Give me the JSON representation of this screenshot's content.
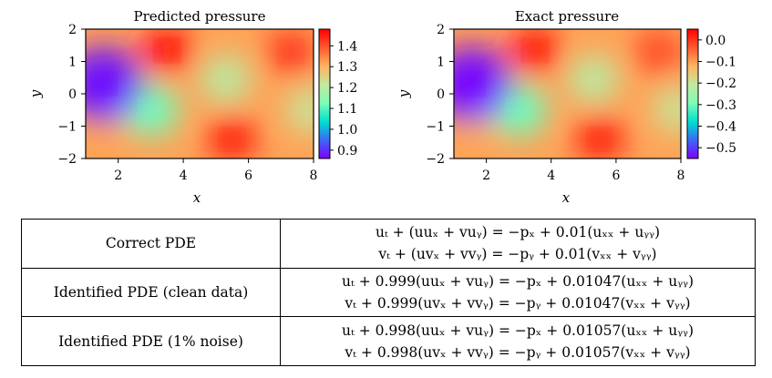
{
  "chart_data": [
    {
      "type": "heatmap",
      "title": "Predicted pressure",
      "xlabel": "x",
      "ylabel": "y",
      "xlim": [
        1,
        8
      ],
      "ylim": [
        -2,
        2
      ],
      "x_ticks": [
        "2",
        "4",
        "6",
        "8"
      ],
      "y_ticks": [
        "2",
        "1",
        "0",
        "−1",
        "−2"
      ],
      "colorbar": {
        "range": [
          0.86,
          1.48
        ],
        "ticks": [
          "1.4",
          "1.3",
          "1.2",
          "1.1",
          "1.0",
          "0.9"
        ],
        "colormap": "rainbow"
      },
      "field": [
        {
          "x": 1.55,
          "y": 0.3,
          "value": 0.88
        },
        {
          "x": 3.5,
          "y": 1.35,
          "value": 1.45
        },
        {
          "x": 3.0,
          "y": -0.5,
          "value": 1.12
        },
        {
          "x": 1.9,
          "y": -0.75,
          "value": 1.32
        },
        {
          "x": 5.3,
          "y": 0.45,
          "value": 1.2
        },
        {
          "x": 7.9,
          "y": -0.5,
          "value": 1.22
        },
        {
          "x": 5.5,
          "y": -1.4,
          "value": 1.44
        },
        {
          "x": 7.3,
          "y": 1.3,
          "value": 1.42
        }
      ]
    },
    {
      "type": "heatmap",
      "title": "Exact pressure",
      "xlabel": "x",
      "ylabel": "y",
      "xlim": [
        1,
        8
      ],
      "ylim": [
        -2,
        2
      ],
      "x_ticks": [
        "2",
        "4",
        "6",
        "8"
      ],
      "y_ticks": [
        "2",
        "1",
        "0",
        "−1",
        "−2"
      ],
      "colorbar": {
        "range": [
          -0.55,
          0.05
        ],
        "ticks": [
          "0.0",
          "−0.1",
          "−0.2",
          "−0.3",
          "−0.4",
          "−0.5"
        ],
        "colormap": "rainbow"
      },
      "field": [
        {
          "x": 1.55,
          "y": 0.3,
          "value": -0.54
        },
        {
          "x": 3.5,
          "y": 1.35,
          "value": 0.02
        },
        {
          "x": 3.0,
          "y": -0.5,
          "value": -0.3
        },
        {
          "x": 1.9,
          "y": -0.75,
          "value": -0.12
        },
        {
          "x": 5.3,
          "y": 0.45,
          "value": -0.22
        },
        {
          "x": 7.9,
          "y": -0.5,
          "value": -0.2
        },
        {
          "x": 5.5,
          "y": -1.4,
          "value": 0.01
        },
        {
          "x": 7.3,
          "y": 1.3,
          "value": -0.02
        }
      ]
    }
  ],
  "colors": {
    "rainbow_stops": [
      "#8000ff",
      "#3b69f6",
      "#00e0ce",
      "#7ffcb6",
      "#c3e89e",
      "#ffb360",
      "#ff5a2f",
      "#ff0000"
    ]
  },
  "table": {
    "rows": [
      {
        "label": "Correct PDE",
        "eq1": "uₜ + (uuₓ + vuᵧ) = −pₓ + 0.01(uₓₓ + uᵧᵧ)",
        "eq2": "vₜ + (uvₓ + vvᵧ) = −pᵧ + 0.01(vₓₓ + vᵧᵧ)"
      },
      {
        "label": "Identified PDE (clean data)",
        "eq1": "uₜ + 0.999(uuₓ + vuᵧ) = −pₓ + 0.01047(uₓₓ + uᵧᵧ)",
        "eq2": "vₜ + 0.999(uvₓ + vvᵧ) = −pᵧ + 0.01047(vₓₓ + vᵧᵧ)"
      },
      {
        "label": "Identified PDE (1% noise)",
        "eq1": "uₜ + 0.998(uuₓ + vuᵧ) = −pₓ + 0.01057(uₓₓ + uᵧᵧ)",
        "eq2": "vₜ + 0.998(uvₓ + vvᵧ) = −pᵧ + 0.01057(vₓₓ + vᵧᵧ)"
      }
    ]
  }
}
